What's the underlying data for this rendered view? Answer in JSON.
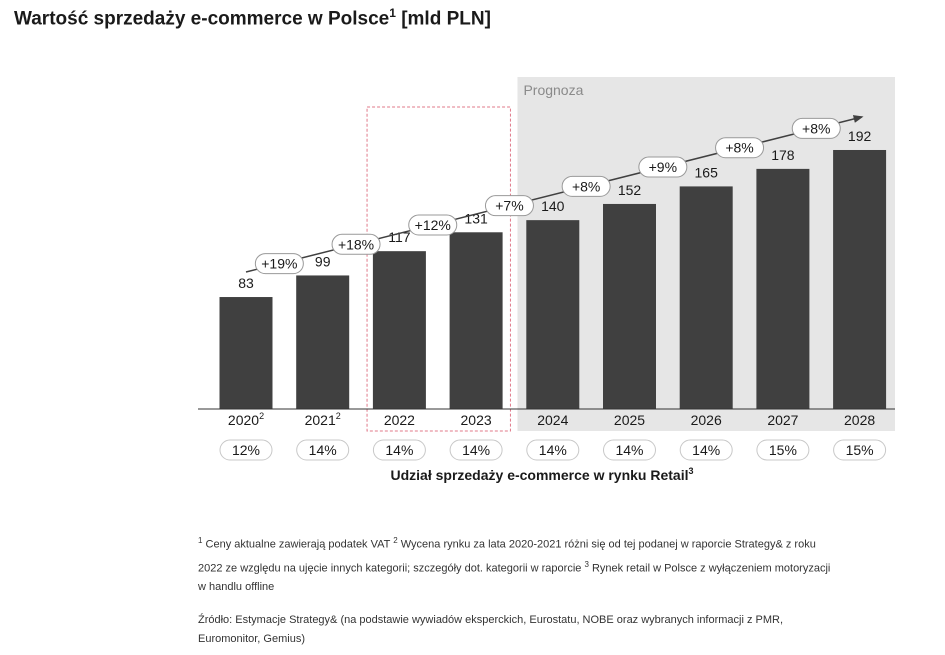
{
  "title": {
    "text": "Wartość sprzedaży e-commerce w Polsce",
    "sup": "1",
    "unit": "[mld PLN]"
  },
  "chart_data": {
    "type": "bar",
    "categories": [
      "2020",
      "2021",
      "2022",
      "2023",
      "2024",
      "2025",
      "2026",
      "2027",
      "2028"
    ],
    "category_sups": [
      "2",
      "2",
      "",
      "",
      "",
      "",
      "",
      "",
      ""
    ],
    "values": [
      83,
      99,
      117,
      131,
      140,
      152,
      165,
      178,
      192
    ],
    "ylim": [
      0,
      200
    ],
    "growth_labels": [
      "+19%",
      "+18%",
      "+12%",
      "+7%",
      "+8%",
      "+9%",
      "+8%",
      "+8%"
    ],
    "share_values": [
      "12%",
      "14%",
      "14%",
      "14%",
      "14%",
      "14%",
      "14%",
      "15%",
      "15%"
    ],
    "share_label": "Udział sprzedaży e-commerce w rynku Retail",
    "share_label_sup": "3",
    "forecast_label": "Prognoza",
    "forecast_start_category": "2024",
    "highlight_categories": [
      "2022",
      "2023"
    ],
    "colors": {
      "bar": "#404040",
      "forecast_bg": "#e6e6e6",
      "highlight_border": "#e07a8a",
      "arrow": "#404040"
    }
  },
  "footnotes": {
    "n1": "1",
    "t1": " Ceny aktualne zawierają podatek VAT ",
    "n2": "2",
    "t2": " Wycena rynku za lata 2020-2021 różni się od tej podanej w raporcie Strategy& z roku 2022 ze względu na ujęcie innych kategorii; szczegóły dot. kategorii w raporcie ",
    "n3": "3",
    "t3": " Rynek retail w Polsce z wyłączeniem motoryzacji w handlu offline"
  },
  "source": "Źródło: Estymacje Strategy& (na podstawie wywiadów eksperckich, Eurostatu, NOBE oraz wybranych informacji z PMR, Euromonitor, Gemius)"
}
